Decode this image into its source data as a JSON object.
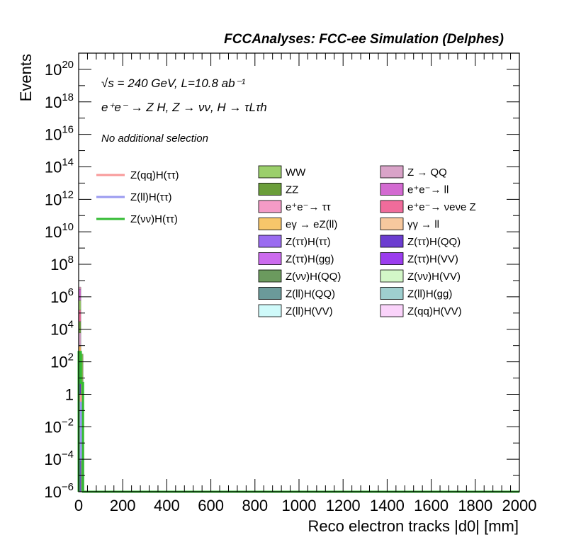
{
  "chart_data": {
    "type": "bar",
    "title": "FCCAnalyses: FCC-ee Simulation (Delphes)",
    "xlabel": "Reco electron tracks |d0| [mm]",
    "ylabel": "Events",
    "annotations": {
      "energy": "√s = 240 GeV, L=10.8 ab⁻¹",
      "process": "e⁺e⁻ → Z H, Z → νν, H → τLτh",
      "selection": "No additional selection"
    },
    "xlim": [
      0,
      2000
    ],
    "ylim": [
      1e-06,
      1e+21
    ],
    "log_y": true,
    "legend_position": "top-right",
    "x_ticks": [
      "0",
      "200",
      "400",
      "600",
      "800",
      "1000",
      "1200",
      "1400",
      "1600",
      "1800",
      "2000"
    ],
    "x_tick_values": [
      0,
      200,
      400,
      600,
      800,
      1000,
      1200,
      1400,
      1600,
      1800,
      2000
    ],
    "y_ticks": [
      {
        "value": 1e-06,
        "base": "10",
        "exp": "−6"
      },
      {
        "value": 0.0001,
        "base": "10",
        "exp": "−4"
      },
      {
        "value": 0.01,
        "base": "10",
        "exp": "−2"
      },
      {
        "value": 1,
        "base": "1",
        "exp": ""
      },
      {
        "value": 100.0,
        "base": "10",
        "exp": "2"
      },
      {
        "value": 10000.0,
        "base": "10",
        "exp": "4"
      },
      {
        "value": 1000000.0,
        "base": "10",
        "exp": "6"
      },
      {
        "value": 100000000.0,
        "base": "10",
        "exp": "8"
      },
      {
        "value": 10000000000.0,
        "base": "10",
        "exp": "10"
      },
      {
        "value": 1000000000000.0,
        "base": "10",
        "exp": "12"
      },
      {
        "value": 100000000000000.0,
        "base": "10",
        "exp": "14"
      },
      {
        "value": 1e+16,
        "base": "10",
        "exp": "16"
      },
      {
        "value": 1e+18,
        "base": "10",
        "exp": "18"
      },
      {
        "value": 1e+20,
        "base": "10",
        "exp": "20"
      }
    ],
    "bin_width": 10,
    "stack_bins": [
      {
        "x0": 0,
        "x1": 10,
        "segments": [
          {
            "from": 1e-06,
            "to": 0.001,
            "color": "#6b55d8"
          },
          {
            "from": 0.001,
            "to": 0.3,
            "color": "#9b49e6"
          },
          {
            "from": 0.3,
            "to": 8,
            "color": "#5c2fd0"
          },
          {
            "from": 8,
            "to": 120,
            "color": "#b05bd9"
          },
          {
            "from": 120,
            "to": 900,
            "color": "#f7b85a"
          },
          {
            "from": 900,
            "to": 6000,
            "color": "#d9a3c8"
          },
          {
            "from": 6000,
            "to": 30000,
            "color": "#6b9e3a"
          },
          {
            "from": 30000,
            "to": 150000,
            "color": "#f06c9b"
          },
          {
            "from": 150000,
            "to": 600000,
            "color": "#9bcf6b"
          },
          {
            "from": 600000,
            "to": 3000000,
            "color": "#d36ad1"
          },
          {
            "from": 3000000,
            "to": 4000000,
            "color": "#f49bc6"
          }
        ]
      },
      {
        "x0": 10,
        "x1": 20,
        "segments": [
          {
            "from": 1e-06,
            "to": 0.05,
            "color": "#6f9f6a"
          },
          {
            "from": 0.05,
            "to": 300,
            "color": "#7fb24f"
          }
        ]
      }
    ],
    "series": [
      {
        "name": "Z(qq)H(ττ)",
        "color": "#f89a9a",
        "values": [
          0.9,
          0.0005
        ],
        "style": "line"
      },
      {
        "name": "Z(ll)H(ττ)",
        "color": "#9a9af0",
        "values": [
          0.3,
          0.0001
        ],
        "style": "line"
      },
      {
        "name": "Z(νν)H(ττ)",
        "color": "#33bb33",
        "values": [
          400,
          5,
          1e-06
        ],
        "style": "line"
      }
    ],
    "legend_lines": [
      {
        "label": "Z(qq)H(ττ)",
        "color": "#f89a9a"
      },
      {
        "label": "Z(ll)H(ττ)",
        "color": "#9a9af0"
      },
      {
        "label": "Z(νν)H(ττ)",
        "color": "#33bb33"
      }
    ],
    "legend_fills": [
      {
        "label": "WW",
        "color": "#9bcf6b"
      },
      {
        "label": "Z → QQ",
        "color": "#d9a3c8"
      },
      {
        "label": "ZZ",
        "color": "#6b9e3a"
      },
      {
        "label": "e⁺e⁻→ ll",
        "color": "#d36ad1"
      },
      {
        "label": "e⁺e⁻→ ττ",
        "color": "#f49bc6"
      },
      {
        "label": "e⁺e⁻→ νeνe Z",
        "color": "#f06c9b"
      },
      {
        "label": "eγ → eZ(ll)",
        "color": "#f7c66a"
      },
      {
        "label": "γγ → ll",
        "color": "#f7c89e"
      },
      {
        "label": "Z(ττ)H(ττ)",
        "color": "#9a6bf0"
      },
      {
        "label": "Z(ττ)H(QQ)",
        "color": "#6b3dd0"
      },
      {
        "label": "Z(ττ)H(gg)",
        "color": "#cc6bee"
      },
      {
        "label": "Z(ττ)H(VV)",
        "color": "#9b3dee"
      },
      {
        "label": "Z(νν)H(QQ)",
        "color": "#6b9a5e"
      },
      {
        "label": "Z(νν)H(VV)",
        "color": "#d3f7c8"
      },
      {
        "label": "Z(ll)H(QQ)",
        "color": "#6b9a9a"
      },
      {
        "label": "Z(ll)H(gg)",
        "color": "#9fcfcf"
      },
      {
        "label": "Z(ll)H(VV)",
        "color": "#cffafa"
      },
      {
        "label": "Z(qq)H(VV)",
        "color": "#fad3fa"
      }
    ]
  }
}
